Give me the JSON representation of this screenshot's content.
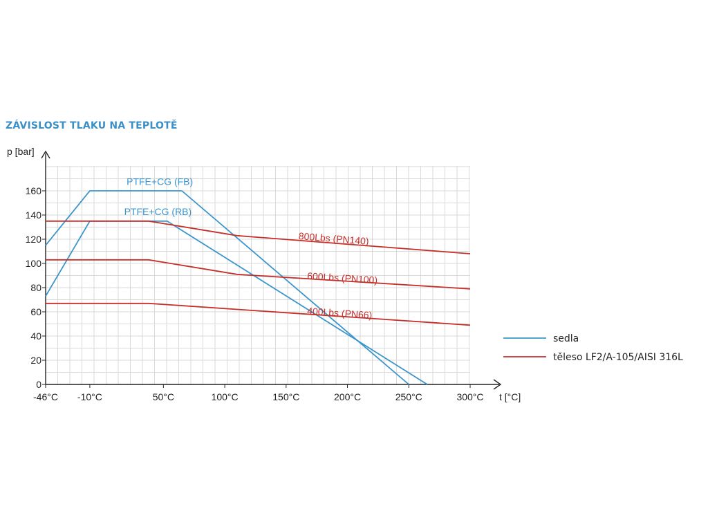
{
  "page_title": "ZÁVISLOST TLAKU NA TEPLOTĚ",
  "colors": {
    "seat": "#3a95cc",
    "body": "#c4302b",
    "grid": "#d9d9d9",
    "axis": "#222222"
  },
  "chart_data": {
    "type": "line",
    "title": "ZÁVISLOST TLAKU NA TEPLOTĚ",
    "xlabel": "t [°C]",
    "ylabel": "p [bar]",
    "xlim": [
      -46,
      300
    ],
    "ylim": [
      0,
      180
    ],
    "x_ticks": [
      {
        "value": -46,
        "label": "-46°C"
      },
      {
        "value": -10,
        "label": "-10°C"
      },
      {
        "value": 50,
        "label": "50°C"
      },
      {
        "value": 100,
        "label": "100°C"
      },
      {
        "value": 150,
        "label": "150°C"
      },
      {
        "value": 200,
        "label": "200°C"
      },
      {
        "value": 250,
        "label": "250°C"
      },
      {
        "value": 300,
        "label": "300°C"
      }
    ],
    "y_ticks": [
      {
        "value": 0,
        "label": "0"
      },
      {
        "value": 20,
        "label": "20"
      },
      {
        "value": 40,
        "label": "40"
      },
      {
        "value": 60,
        "label": "60"
      },
      {
        "value": 80,
        "label": "80"
      },
      {
        "value": 100,
        "label": "100"
      },
      {
        "value": 120,
        "label": "120"
      },
      {
        "value": 140,
        "label": "140"
      },
      {
        "value": 160,
        "label": "160"
      }
    ],
    "grid": true,
    "legend_position": "right",
    "legend": [
      {
        "name": "sedla",
        "group": "seat"
      },
      {
        "name": "těleso LF2/A-105/AISI 316L",
        "group": "body"
      }
    ],
    "series": [
      {
        "name": "PTFE+CG (FB)",
        "group": "seat",
        "label_at": [
          20,
          165
        ],
        "points": [
          [
            -46,
            115
          ],
          [
            -10,
            160
          ],
          [
            65,
            160
          ],
          [
            250,
            0
          ]
        ]
      },
      {
        "name": "PTFE+CG (RB)",
        "group": "seat",
        "label_at": [
          18,
          140
        ],
        "points": [
          [
            -46,
            73
          ],
          [
            -10,
            135
          ],
          [
            53,
            135
          ],
          [
            265,
            0
          ]
        ]
      },
      {
        "name": "800Lbs (PN140)",
        "group": "body",
        "label_at": [
          160,
          120
        ],
        "points": [
          [
            -46,
            135
          ],
          [
            38,
            135
          ],
          [
            110,
            123
          ],
          [
            300,
            108
          ]
        ]
      },
      {
        "name": "600Lbs (PN100)",
        "group": "body",
        "label_at": [
          167,
          87
        ],
        "points": [
          [
            -46,
            103
          ],
          [
            38,
            103
          ],
          [
            110,
            91
          ],
          [
            300,
            79
          ]
        ]
      },
      {
        "name": "400Lbs (PN66)",
        "group": "body",
        "label_at": [
          167,
          58
        ],
        "points": [
          [
            -46,
            67
          ],
          [
            38,
            67
          ],
          [
            300,
            49
          ]
        ]
      }
    ]
  }
}
